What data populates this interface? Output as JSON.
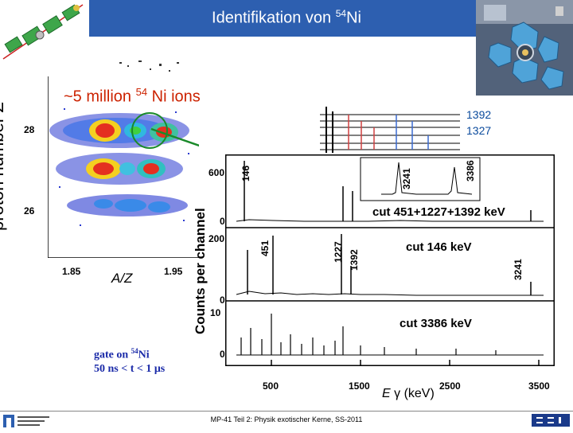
{
  "header": {
    "title_prefix": "Identifikation von ",
    "title_mass": "54",
    "title_element": "Ni",
    "bg_color": "#2d5fb0"
  },
  "id_plot": {
    "ylabel_text": "proton number ",
    "ylabel_symbol": "Z",
    "xlabel": "A/Z",
    "yticks": [
      "28",
      "26"
    ],
    "xticks": [
      "1.85",
      "1.95"
    ],
    "ions_prefix": "~5 million ",
    "ions_mass": "54",
    "ions_suffix": " Ni ions"
  },
  "levels": [
    "1392",
    "1327"
  ],
  "spectra": {
    "ylabel": "Counts per channel",
    "x_tick_labels": [
      "500",
      "1500",
      "2500",
      "3500"
    ],
    "elabel_symbol": "E",
    "elabel_gamma": "γ",
    "elabel_unit": " (keV)",
    "panels": [
      {
        "cut": "cut 451+1227+1392 keV",
        "ytick_top": "600",
        "ytick_zero": "0",
        "peaks": [
          "146",
          "3241",
          "3386"
        ]
      },
      {
        "cut": "cut 146 keV",
        "ytick_top": "200",
        "ytick_zero": "0",
        "peaks": [
          "451",
          "1227",
          "1392",
          "3241"
        ]
      },
      {
        "cut": "cut 3386 keV",
        "ytick_top": "10",
        "ytick_zero": "0",
        "peaks": []
      }
    ]
  },
  "gate": {
    "line1_prefix": "gate on ",
    "line1_mass": "54",
    "line1_element": "Ni",
    "line2": "50 ns < t < 1 μs"
  },
  "footer": {
    "text": "MP-41 Teil 2: Physik exotischer Kerne, SS-2011"
  }
}
